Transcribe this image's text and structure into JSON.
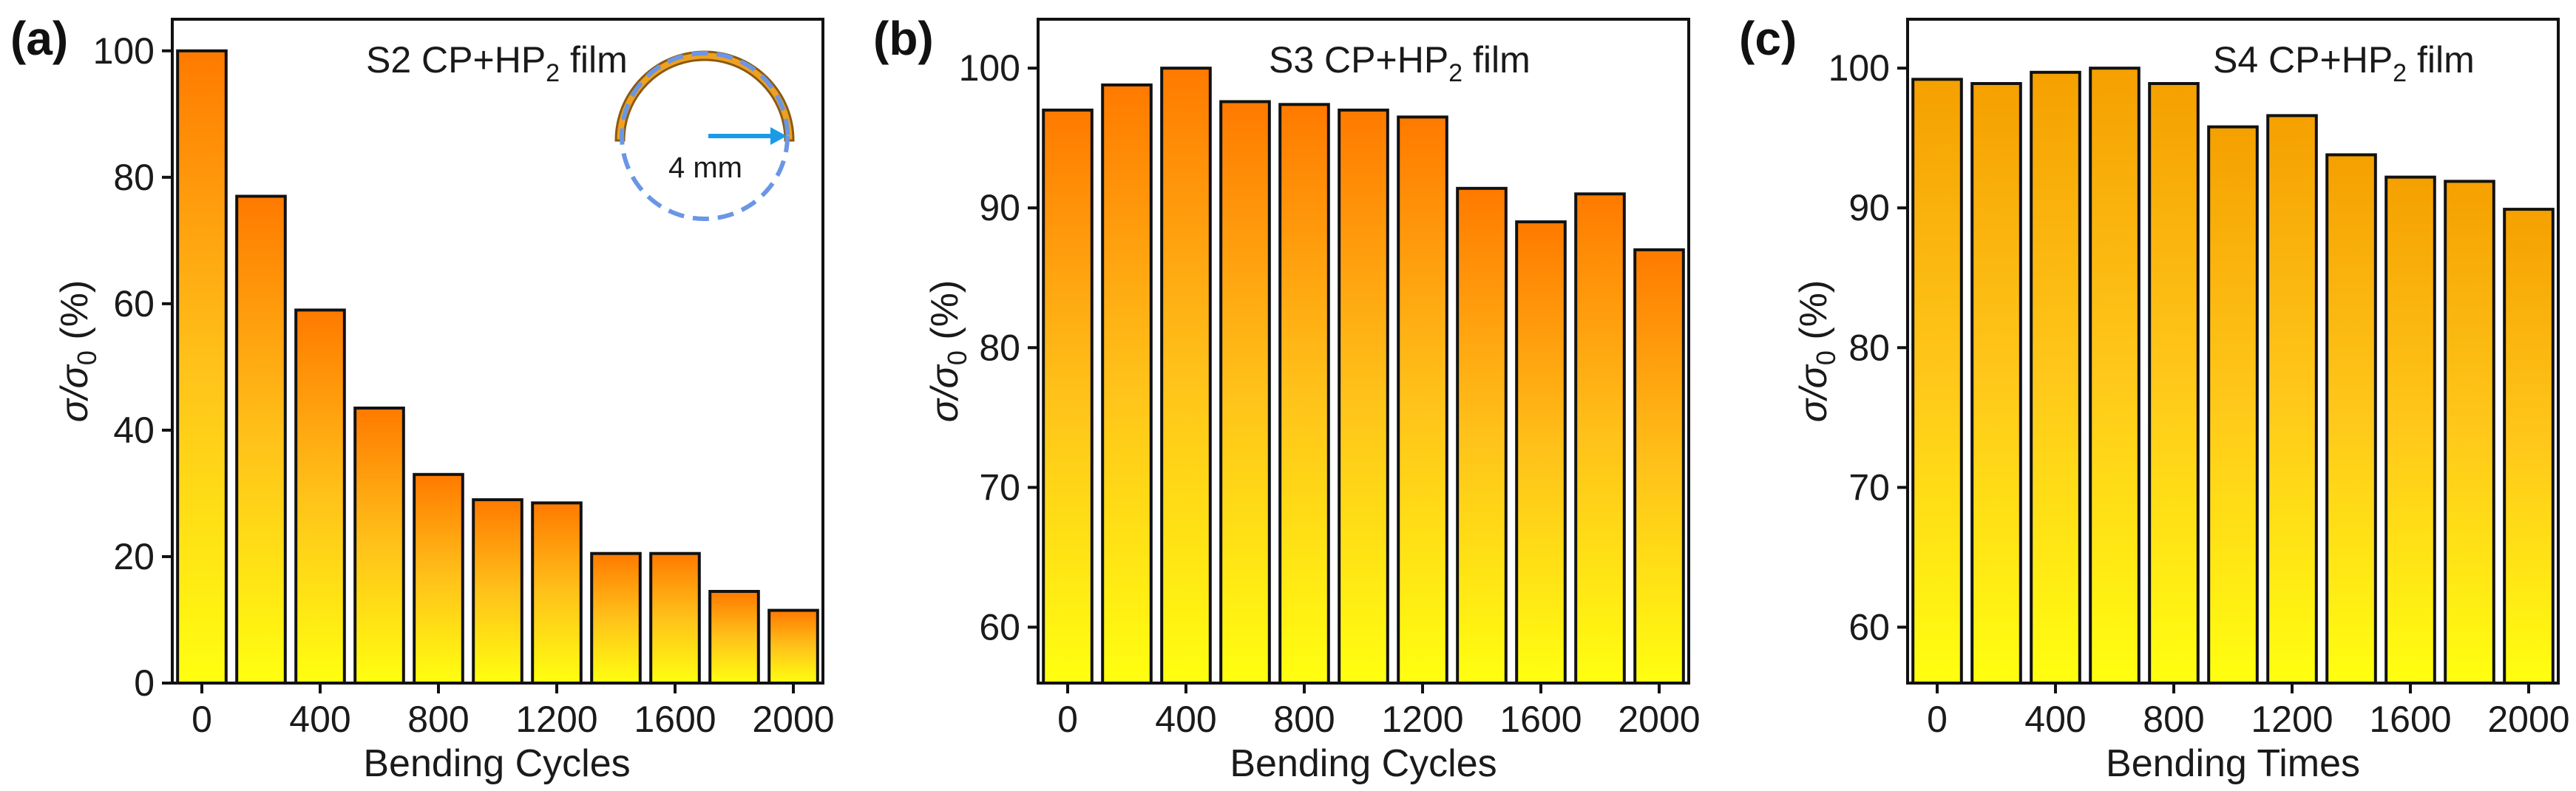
{
  "chart_data": [
    {
      "type": "bar",
      "panel_label": "(a)",
      "title": "S2 CP+HP₂ film",
      "title_parts": {
        "main": "S2 CP+HP",
        "sub": "2",
        "tail": " film"
      },
      "xlabel": "Bending Cycles",
      "ylabel_parts": {
        "main": "σ/σ",
        "sub": "0",
        "tail": " (%)"
      },
      "x": [
        0,
        200,
        400,
        600,
        800,
        1000,
        1200,
        1400,
        1600,
        1800,
        2000
      ],
      "values": [
        100,
        77,
        59,
        43.5,
        33,
        29,
        28.5,
        20.5,
        20.5,
        14.5,
        11.5
      ],
      "ylim": [
        0,
        105
      ],
      "yticks": [
        0,
        20,
        40,
        60,
        80,
        100
      ],
      "xticks": [
        0,
        400,
        800,
        1200,
        1600,
        2000
      ],
      "gradient": "gradA",
      "inset": {
        "label": "4 mm",
        "ring_color": "#f0a020",
        "circle_color": "#6a96e6",
        "arrow_color": "#1a9be6"
      }
    },
    {
      "type": "bar",
      "panel_label": "(b)",
      "title": "S3 CP+HP₂ film",
      "title_parts": {
        "main": "S3 CP+HP",
        "sub": "2",
        "tail": " film"
      },
      "xlabel": "Bending Cycles",
      "ylabel_parts": {
        "main": "σ/σ",
        "sub": "0",
        "tail": " (%)"
      },
      "x": [
        0,
        200,
        400,
        600,
        800,
        1000,
        1200,
        1400,
        1600,
        1800,
        2000
      ],
      "values": [
        97,
        98.8,
        100,
        97.6,
        97.4,
        97,
        96.5,
        91.4,
        89,
        91,
        87
      ],
      "ylim": [
        56,
        103.5
      ],
      "yticks": [
        60,
        70,
        80,
        90,
        100
      ],
      "xticks": [
        0,
        400,
        800,
        1200,
        1600,
        2000
      ],
      "gradient": "gradA"
    },
    {
      "type": "bar",
      "panel_label": "(c)",
      "title": "S4 CP+HP₂ film",
      "title_parts": {
        "main": "S4 CP+HP",
        "sub": "2",
        "tail": " film"
      },
      "xlabel": "Bending Times",
      "ylabel_parts": {
        "main": "σ/σ",
        "sub": "0",
        "tail": " (%)"
      },
      "x": [
        0,
        200,
        400,
        600,
        800,
        1000,
        1200,
        1400,
        1600,
        1800,
        2000
      ],
      "values": [
        99.2,
        98.9,
        99.7,
        100,
        98.9,
        95.8,
        96.6,
        93.8,
        92.2,
        91.9,
        89.9
      ],
      "ylim": [
        56,
        103.5
      ],
      "yticks": [
        60,
        70,
        80,
        90,
        100
      ],
      "xticks": [
        0,
        400,
        800,
        1200,
        1600,
        2000
      ],
      "gradient": "gradC"
    }
  ]
}
